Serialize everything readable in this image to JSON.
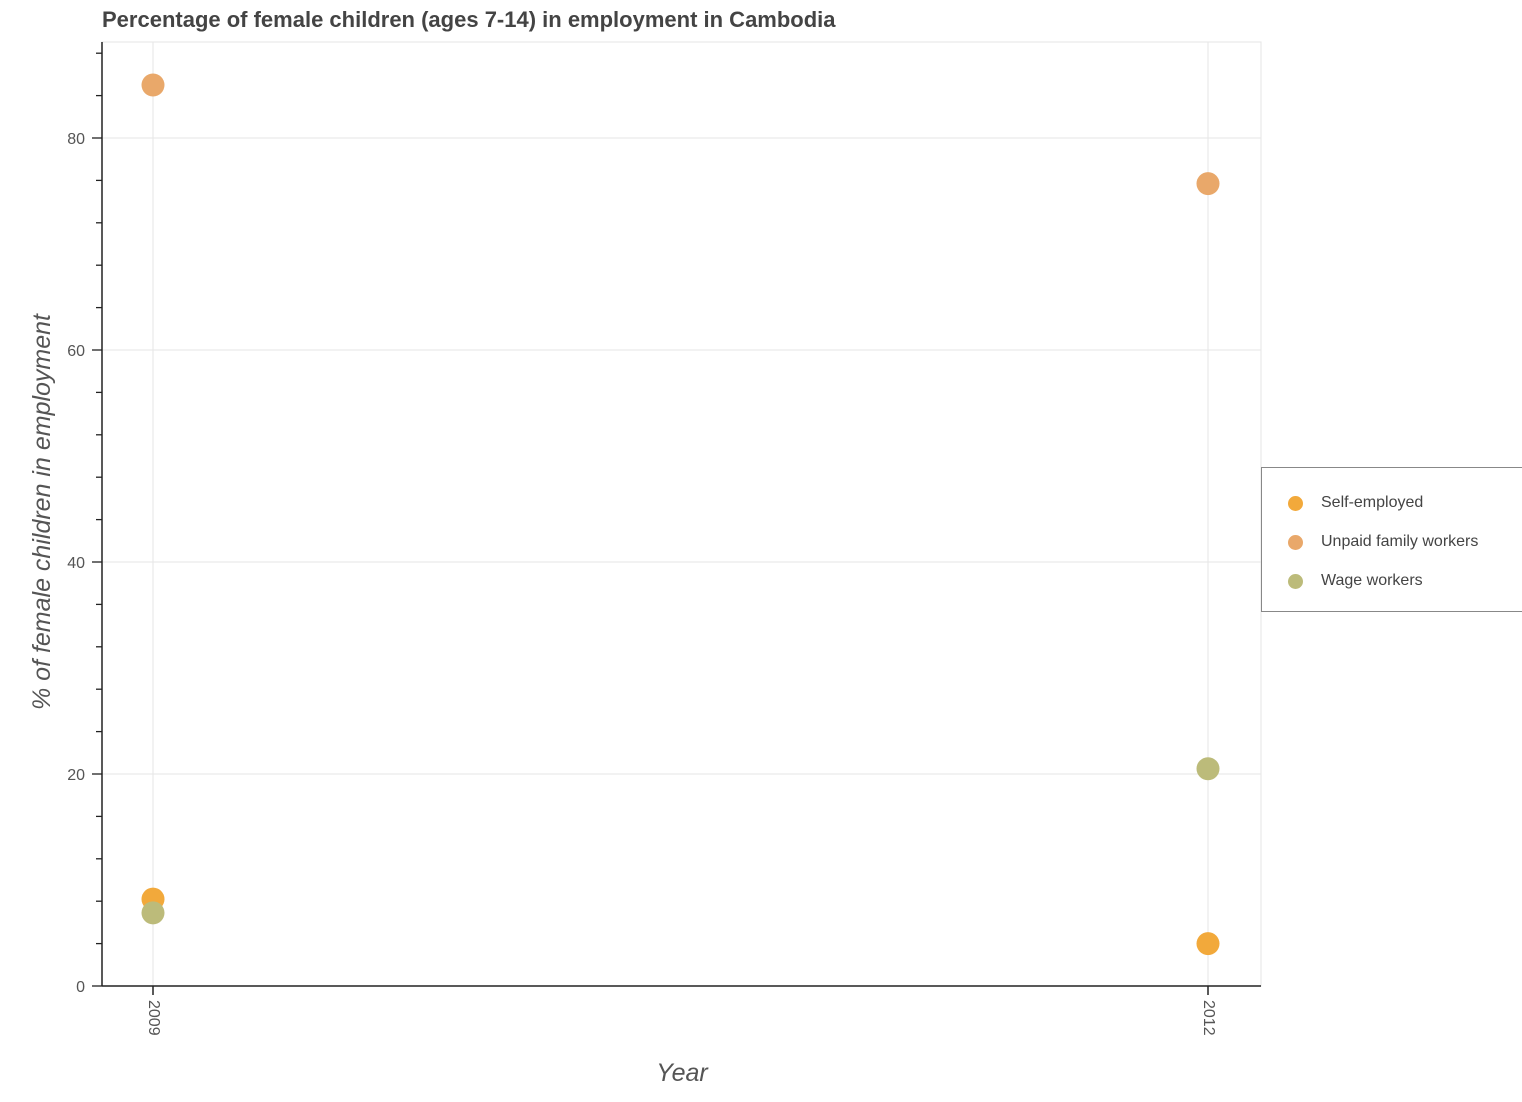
{
  "chart_data": {
    "type": "scatter",
    "title": "Percentage of female children (ages 7-14) in employment in Cambodia",
    "xlabel": "Year",
    "ylabel": "% of female children in employment",
    "categories": [
      "2009",
      "2012"
    ],
    "series": [
      {
        "name": "Self-employed",
        "color": "#f2a93b",
        "values": [
          8.2,
          4.0
        ]
      },
      {
        "name": "Unpaid family workers",
        "color": "#e9a86a",
        "values": [
          85.0,
          75.7
        ]
      },
      {
        "name": "Wage workers",
        "color": "#bcbb7a",
        "values": [
          6.9,
          20.5
        ]
      }
    ],
    "ylim": [
      0,
      89
    ],
    "yticks": [
      0,
      20,
      40,
      60,
      80
    ],
    "grid": true,
    "legend_position": "right"
  },
  "legend": {
    "items": [
      {
        "label": "Self-employed",
        "color": "#f2a93b"
      },
      {
        "label": "Unpaid family workers",
        "color": "#e9a86a"
      },
      {
        "label": "Wage workers",
        "color": "#bcbb7a"
      }
    ]
  }
}
